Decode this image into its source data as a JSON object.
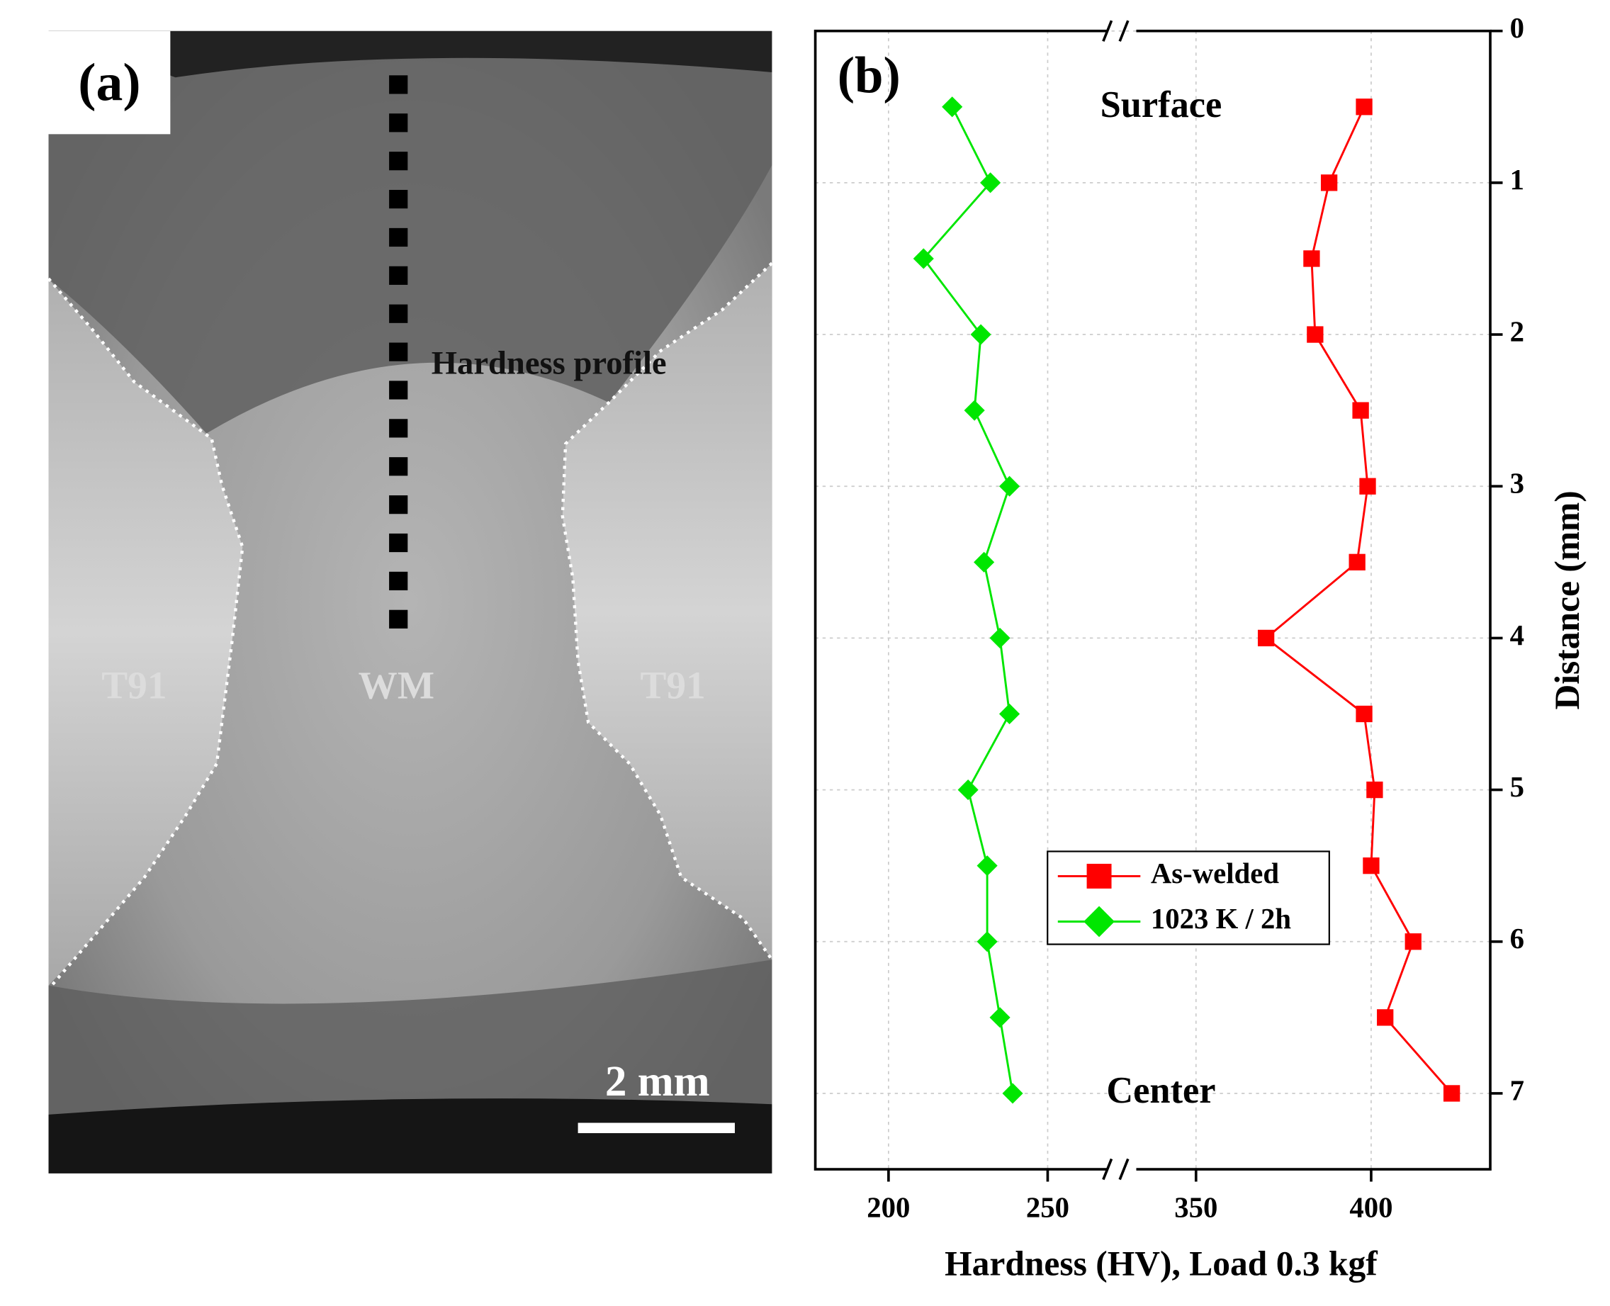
{
  "panel_a": {
    "label": "(a)",
    "profile_label": "Hardness profile",
    "regions": [
      "T91",
      "WM",
      "T91"
    ],
    "scale_bar": "2 mm"
  },
  "chart_data": {
    "type": "line",
    "label": "(b)",
    "annotations": [
      "Surface",
      "Center"
    ],
    "xlabel": "Hardness (HV), Load 0.3 kgf",
    "ylabel": "Distance (mm)",
    "y": [
      0.5,
      1,
      1.5,
      2,
      2.5,
      3,
      3.5,
      4,
      4.5,
      5,
      5.5,
      6,
      6.5,
      7
    ],
    "series": [
      {
        "name": "As-welded",
        "color": "#ff0000",
        "marker": "square",
        "values": [
          398,
          388,
          383,
          384,
          397,
          399,
          396,
          370,
          398,
          401,
          400,
          412,
          404,
          423
        ]
      },
      {
        "name": "1023 K / 2h",
        "color": "#00e600",
        "marker": "diamond",
        "values": [
          220,
          232,
          211,
          229,
          227,
          238,
          230,
          235,
          238,
          225,
          231,
          231,
          235,
          239
        ]
      }
    ],
    "xlim": [
      177,
      434
    ],
    "xbreak": [
      272,
      330
    ],
    "xticks": [
      200,
      250,
      350,
      400
    ],
    "ylim": [
      0,
      7.5
    ],
    "yticks": [
      0,
      1,
      2,
      3,
      4,
      5,
      6,
      7
    ],
    "yinverted": true,
    "yaxis_side": "right",
    "grid": true,
    "legend": "lower right"
  }
}
